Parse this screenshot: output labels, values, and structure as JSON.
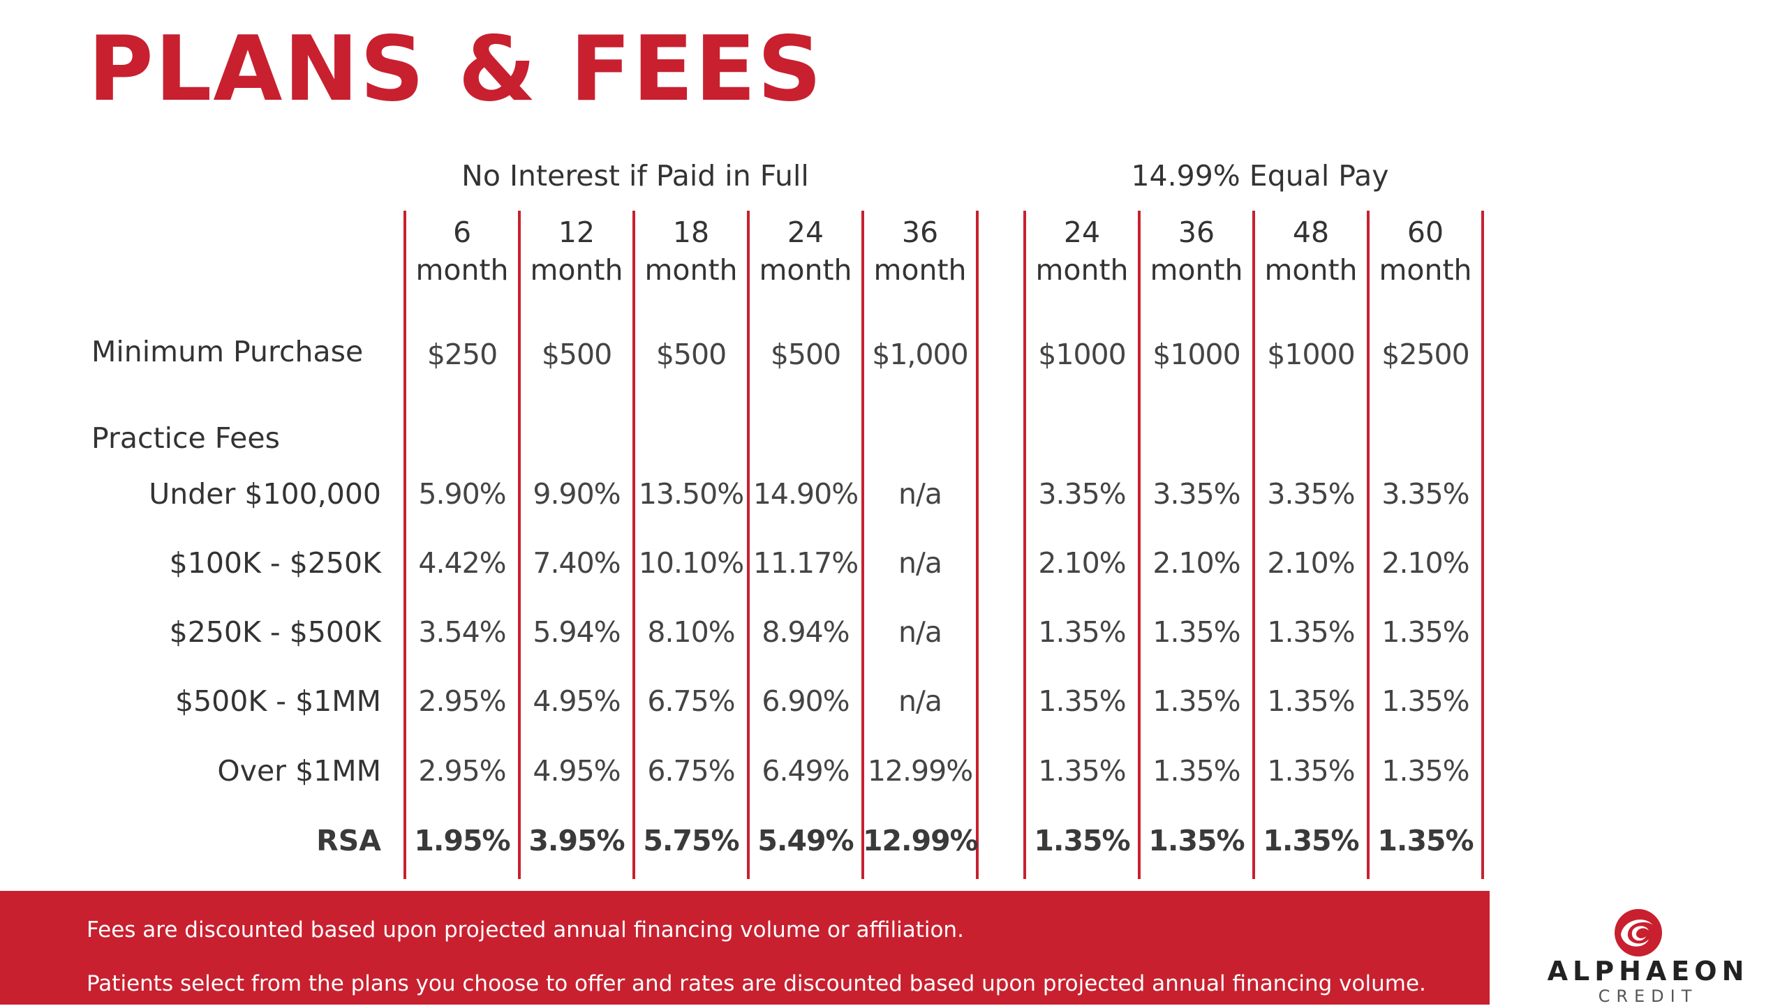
{
  "title": "PLANS & FEES",
  "groups": {
    "no_interest": "No Interest if Paid in Full",
    "equal_pay": "14.99% Equal Pay"
  },
  "columns": [
    {
      "term": "6",
      "unit": "month"
    },
    {
      "term": "12",
      "unit": "month"
    },
    {
      "term": "18",
      "unit": "month"
    },
    {
      "term": "24",
      "unit": "month"
    },
    {
      "term": "36",
      "unit": "month"
    },
    {
      "term": "24",
      "unit": "month"
    },
    {
      "term": "36",
      "unit": "month"
    },
    {
      "term": "48",
      "unit": "month"
    },
    {
      "term": "60",
      "unit": "month"
    }
  ],
  "minimum_purchase": {
    "label": "Minimum Purchase",
    "values": [
      "$250",
      "$500",
      "$500",
      "$500",
      "$1,000",
      "$1000",
      "$1000",
      "$1000",
      "$2500"
    ]
  },
  "practice_fees_label": "Practice Fees",
  "rows": [
    {
      "label": "Under $100,000",
      "values": [
        "5.90%",
        "9.90%",
        "13.50%",
        "14.90%",
        "n/a",
        "3.35%",
        "3.35%",
        "3.35%",
        "3.35%"
      ]
    },
    {
      "label": "$100K - $250K",
      "values": [
        "4.42%",
        "7.40%",
        "10.10%",
        "11.17%",
        "n/a",
        "2.10%",
        "2.10%",
        "2.10%",
        "2.10%"
      ]
    },
    {
      "label": "$250K - $500K",
      "values": [
        "3.54%",
        "5.94%",
        "8.10%",
        "8.94%",
        "n/a",
        "1.35%",
        "1.35%",
        "1.35%",
        "1.35%"
      ]
    },
    {
      "label": "$500K - $1MM",
      "values": [
        "2.95%",
        "4.95%",
        "6.75%",
        "6.90%",
        "n/a",
        "1.35%",
        "1.35%",
        "1.35%",
        "1.35%"
      ]
    },
    {
      "label": "Over $1MM",
      "values": [
        "2.95%",
        "4.95%",
        "6.75%",
        "6.49%",
        "12.99%",
        "1.35%",
        "1.35%",
        "1.35%",
        "1.35%"
      ]
    },
    {
      "label": "RSA",
      "values": [
        "1.95%",
        "3.95%",
        "5.75%",
        "5.49%",
        "12.99%",
        "1.35%",
        "1.35%",
        "1.35%",
        "1.35%"
      ]
    }
  ],
  "footer": {
    "note_1": "Fees are discounted based upon projected annual financing volume or affiliation.",
    "note_2": "Patients select from the plans you choose to offer and rates are discounted based upon projected annual financing volume."
  },
  "logo": {
    "name": "ALPHAEON",
    "sub": "CREDIT",
    "mark": "alphaeon-swirl-icon",
    "color": "#c8202f"
  },
  "colors": {
    "accent": "#c8202f",
    "text": "#3f3f3f"
  }
}
